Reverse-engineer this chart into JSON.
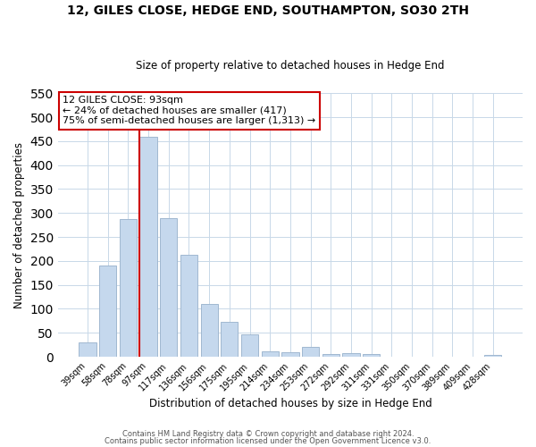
{
  "title": "12, GILES CLOSE, HEDGE END, SOUTHAMPTON, SO30 2TH",
  "subtitle": "Size of property relative to detached houses in Hedge End",
  "xlabel": "Distribution of detached houses by size in Hedge End",
  "ylabel": "Number of detached properties",
  "bar_labels": [
    "39sqm",
    "58sqm",
    "78sqm",
    "97sqm",
    "117sqm",
    "136sqm",
    "156sqm",
    "175sqm",
    "195sqm",
    "214sqm",
    "234sqm",
    "253sqm",
    "272sqm",
    "292sqm",
    "311sqm",
    "331sqm",
    "350sqm",
    "370sqm",
    "389sqm",
    "409sqm",
    "428sqm"
  ],
  "bar_values": [
    30,
    190,
    287,
    460,
    290,
    212,
    110,
    73,
    46,
    12,
    10,
    20,
    5,
    7,
    5,
    0,
    0,
    0,
    0,
    0,
    4
  ],
  "bar_color": "#c5d8ed",
  "bar_edgecolor": "#a0b8d0",
  "vline_color": "#cc0000",
  "ylim": [
    0,
    550
  ],
  "yticks": [
    0,
    50,
    100,
    150,
    200,
    250,
    300,
    350,
    400,
    450,
    500,
    550
  ],
  "annotation_line1": "12 GILES CLOSE: 93sqm",
  "annotation_line2": "← 24% of detached houses are smaller (417)",
  "annotation_line3": "75% of semi-detached houses are larger (1,313) →",
  "annotation_box_edgecolor": "#cc0000",
  "footer_line1": "Contains HM Land Registry data © Crown copyright and database right 2024.",
  "footer_line2": "Contains public sector information licensed under the Open Government Licence v3.0.",
  "bg_color": "#ffffff",
  "grid_color": "#c8d8e8",
  "title_fontsize": 10,
  "subtitle_fontsize": 8.5,
  "ylabel_fontsize": 8.5,
  "xlabel_fontsize": 8.5,
  "tick_fontsize": 7,
  "annotation_fontsize": 8,
  "footer_fontsize": 6
}
